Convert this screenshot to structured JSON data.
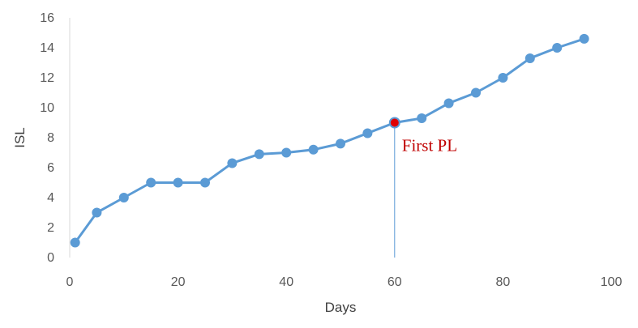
{
  "chart_data": {
    "type": "line",
    "title": "",
    "xlabel": "Days",
    "ylabel": "ISL",
    "xlim": [
      0,
      100
    ],
    "ylim": [
      0,
      16
    ],
    "x_ticks": [
      0,
      20,
      40,
      60,
      80,
      100
    ],
    "y_ticks": [
      0,
      2,
      4,
      6,
      8,
      10,
      12,
      14,
      16
    ],
    "grid": false,
    "legend": "none",
    "series": [
      {
        "color": "#5b9bd5",
        "x": [
          1,
          5,
          10,
          15,
          20,
          25,
          30,
          35,
          40,
          45,
          50,
          55,
          60,
          65,
          70,
          75,
          80,
          85,
          90,
          95
        ],
        "y": [
          1,
          3,
          4,
          5,
          5,
          5,
          6.3,
          6.9,
          7,
          7.2,
          7.6,
          8.3,
          9,
          9.3,
          10.3,
          11,
          12,
          13.3,
          14,
          14.6
        ]
      }
    ],
    "annotations": [
      {
        "text": "First PL",
        "x": 60,
        "y": 9,
        "color": "#c00000",
        "marker_color": "#e00000",
        "line_color": "#5b9bd5"
      }
    ]
  }
}
